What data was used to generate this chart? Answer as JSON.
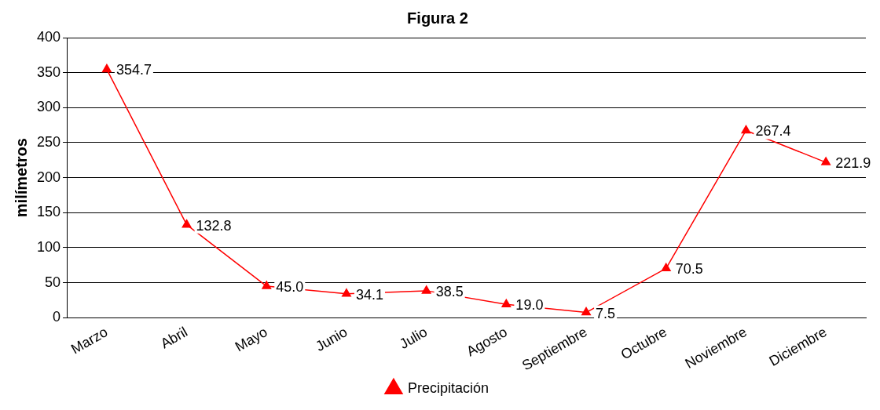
{
  "chart_data": {
    "type": "line",
    "title": "Figura 2",
    "ylabel": "milímetros",
    "categories": [
      "Marzo",
      "Abril",
      "Mayo",
      "Junio",
      "Julio",
      "Agosto",
      "Septiembre",
      "Octubre",
      "Noviembre",
      "Diciembre"
    ],
    "series": [
      {
        "name": "Precipitación",
        "color": "#ff0000",
        "values": [
          354.7,
          132.8,
          45.0,
          34.1,
          38.5,
          19.0,
          7.5,
          70.5,
          267.4,
          221.9
        ]
      }
    ],
    "value_labels": [
      "354.7",
      "132.8",
      "45.0",
      "34.1",
      "38.5",
      "19.0",
      "7.5",
      "70.5",
      "267.4",
      "221.9"
    ],
    "ylim": [
      0,
      400
    ],
    "yticks": [
      0,
      50,
      100,
      150,
      200,
      250,
      300,
      350,
      400
    ],
    "grid": "y",
    "legend": "bottom",
    "marker": "triangle",
    "line_style": "solid"
  }
}
